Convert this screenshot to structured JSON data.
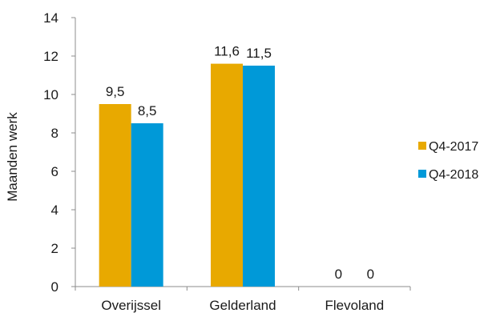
{
  "chart_data": {
    "type": "bar",
    "title": "",
    "xlabel": "",
    "ylabel": "Maanden werk",
    "categories": [
      "Overijssel",
      "Gelderland",
      "Flevoland"
    ],
    "series": [
      {
        "name": "Q4-2017",
        "color": "#E8A900",
        "values": [
          9.5,
          11.6,
          0
        ],
        "labels": [
          "9,5",
          "11,6",
          "0"
        ]
      },
      {
        "name": "Q4-2018",
        "color": "#0099D8",
        "values": [
          8.5,
          11.5,
          0
        ],
        "labels": [
          "8,5",
          "11,5",
          "0"
        ]
      }
    ],
    "ylim": [
      0,
      14
    ],
    "yticks": [
      0,
      2,
      4,
      6,
      8,
      10,
      12,
      14
    ],
    "grid": false,
    "legend_position": "right"
  }
}
